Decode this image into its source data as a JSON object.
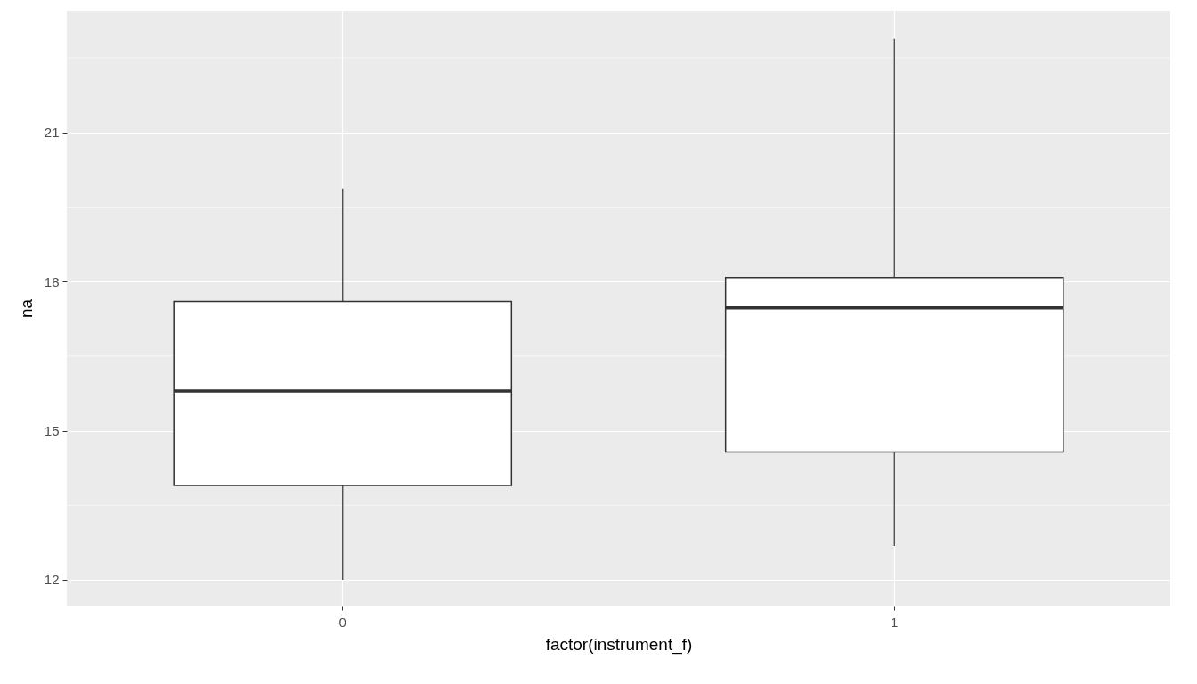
{
  "chart_data": {
    "type": "box",
    "xlabel": "factor(instrument_f)",
    "ylabel": "na",
    "categories": [
      "0",
      "1"
    ],
    "boxes": [
      {
        "low": 12.0,
        "q1": 13.9,
        "median": 15.8,
        "q3": 17.6,
        "high": 19.87
      },
      {
        "low": 12.68,
        "q1": 14.57,
        "median": 17.47,
        "q3": 18.08,
        "high": 22.88
      }
    ],
    "ylim": [
      11.48,
      23.45
    ],
    "yticks": [
      {
        "value": 13.5,
        "label": null
      },
      {
        "value": 16.5,
        "label": null
      },
      {
        "value": 19.5,
        "label": null
      },
      {
        "value": 22.5,
        "label": null
      },
      12,
      15,
      18,
      21
    ],
    "grid": true
  }
}
